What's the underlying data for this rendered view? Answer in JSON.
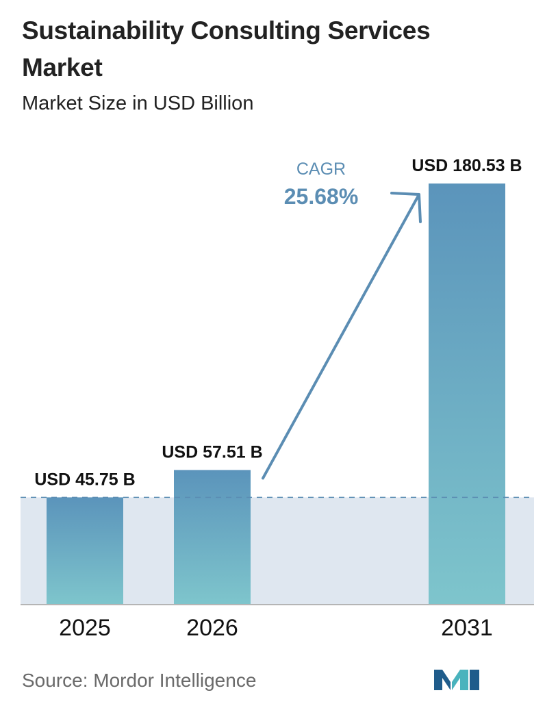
{
  "header": {
    "title": "Sustainability Consulting Services Market",
    "subtitle": "Market Size in USD Billion"
  },
  "footer": {
    "source": "Source:  Mordor Intelligence"
  },
  "cagr": {
    "label": "CAGR",
    "value": "25.68%"
  },
  "colors": {
    "bar_top": "#5b94bb",
    "bar_bottom": "#7ec5cc",
    "band": "#dfe7f0",
    "dashed_line": "#5b8db3",
    "arrow": "#5b8db3",
    "cagr_text": "#5b8db3",
    "axis": "#b5b5b5",
    "logo_primary": "#1f5c8b",
    "logo_accent": "#49b3bd"
  },
  "logo_icon": "mordor-intelligence-logo-icon",
  "chart_data": {
    "type": "bar",
    "title": "Sustainability Consulting Services Market",
    "subtitle": "Market Size in USD Billion",
    "categories": [
      "2025",
      "2026",
      "2031"
    ],
    "values": [
      45.75,
      57.51,
      180.53
    ],
    "value_labels": [
      "USD 45.75 B",
      "USD 57.51 B",
      "USD 180.53 B"
    ],
    "ylim": [
      0,
      180.53
    ],
    "grid": false,
    "legend": "none",
    "annotations": [
      "CAGR",
      "25.68%"
    ]
  }
}
